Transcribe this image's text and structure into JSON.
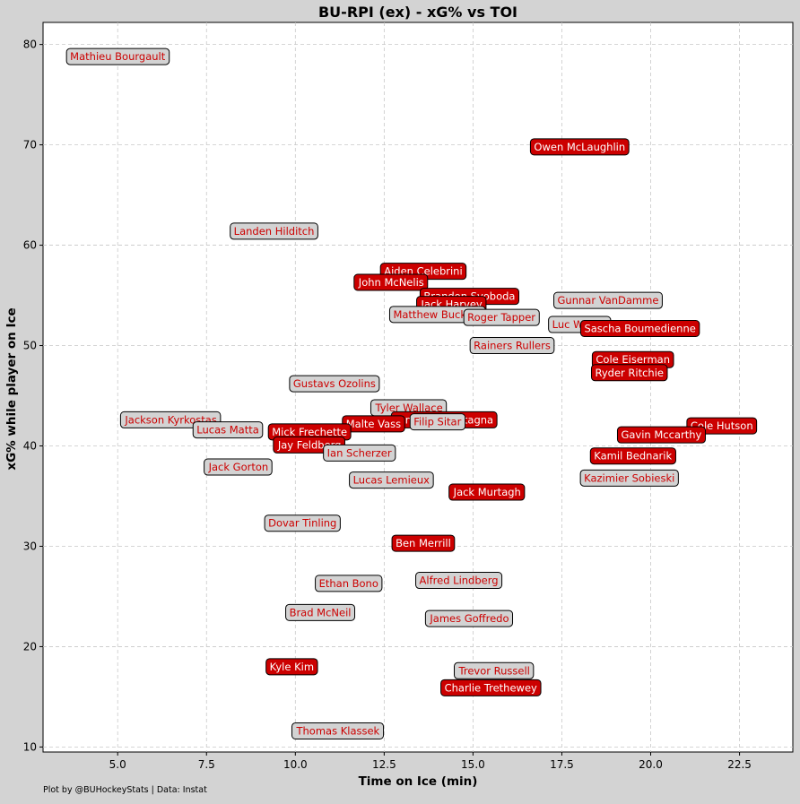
{
  "chart_data": {
    "type": "scatter",
    "title": "BU-RPI (ex) - xG% vs TOI",
    "xlabel": "Time on Ice (min)",
    "ylabel": "xG% while player on Ice",
    "xlim": [
      2.9,
      24.0
    ],
    "ylim": [
      9.5,
      82.2
    ],
    "xticks": [
      5.0,
      7.5,
      10.0,
      12.5,
      15.0,
      17.5,
      20.0,
      22.5
    ],
    "xtick_labels": [
      "5.0",
      "7.5",
      "10.0",
      "12.5",
      "15.0",
      "17.5",
      "20.0",
      "22.5"
    ],
    "yticks": [
      10,
      20,
      30,
      40,
      50,
      60,
      70,
      80
    ],
    "ytick_labels": [
      "10",
      "20",
      "30",
      "40",
      "50",
      "60",
      "70",
      "80"
    ],
    "grid": true,
    "colors": {
      "team_a": "#cc0000",
      "team_b": "#d3d3d3",
      "label_text_on_gray": "#cc0000",
      "label_text_on_red": "#ffffff"
    },
    "points": [
      {
        "name": "Mathieu Bourgault",
        "x": 5.0,
        "y": 78.8,
        "team": "b"
      },
      {
        "name": "Owen McLaughlin",
        "x": 18.0,
        "y": 69.8,
        "team": "a"
      },
      {
        "name": "Landen Hilditch",
        "x": 9.4,
        "y": 61.4,
        "team": "b"
      },
      {
        "name": "Aiden Celebrini",
        "x": 13.6,
        "y": 57.4,
        "team": "a"
      },
      {
        "name": "John McNelis",
        "x": 12.7,
        "y": 56.3,
        "team": "a"
      },
      {
        "name": "Brandon Svoboda",
        "x": 14.9,
        "y": 54.9,
        "team": "a"
      },
      {
        "name": "Gunnar VanDamme",
        "x": 18.8,
        "y": 54.5,
        "team": "b"
      },
      {
        "name": "Jack Harvey",
        "x": 14.4,
        "y": 54.1,
        "team": "a"
      },
      {
        "name": "Matthew Buckley",
        "x": 14.0,
        "y": 53.1,
        "team": "b"
      },
      {
        "name": "Roger Tapper",
        "x": 15.8,
        "y": 52.8,
        "team": "b"
      },
      {
        "name": "Luc Wilson",
        "x": 18.0,
        "y": 52.1,
        "team": "b"
      },
      {
        "name": "Sascha Boumedienne",
        "x": 19.7,
        "y": 51.7,
        "team": "a"
      },
      {
        "name": "Rainers Rullers",
        "x": 16.1,
        "y": 50.0,
        "team": "b"
      },
      {
        "name": "Cole Eiserman",
        "x": 19.5,
        "y": 48.6,
        "team": "a"
      },
      {
        "name": "Ryder Ritchie",
        "x": 19.4,
        "y": 47.3,
        "team": "a"
      },
      {
        "name": "Gustavs Ozolins",
        "x": 11.1,
        "y": 46.2,
        "team": "b"
      },
      {
        "name": "Tyler Wallace",
        "x": 13.2,
        "y": 43.8,
        "team": "b"
      },
      {
        "name": "Jonathan Castagna",
        "x": 14.2,
        "y": 42.6,
        "team": "a"
      },
      {
        "name": "Jackson Kyrkostas",
        "x": 6.5,
        "y": 42.6,
        "team": "b"
      },
      {
        "name": "Malte Vass",
        "x": 12.2,
        "y": 42.2,
        "team": "a"
      },
      {
        "name": "Filip Sitar",
        "x": 14.0,
        "y": 42.4,
        "team": "b"
      },
      {
        "name": "Cole Hutson",
        "x": 22.0,
        "y": 42.0,
        "team": "a"
      },
      {
        "name": "Lucas Matta",
        "x": 8.1,
        "y": 41.6,
        "team": "b"
      },
      {
        "name": "Mick Frechette",
        "x": 10.4,
        "y": 41.4,
        "team": "a"
      },
      {
        "name": "Gavin Mccarthy",
        "x": 20.3,
        "y": 41.1,
        "team": "a"
      },
      {
        "name": "Jay Feldberg",
        "x": 10.4,
        "y": 40.1,
        "team": "a"
      },
      {
        "name": "Ian Scherzer",
        "x": 11.8,
        "y": 39.3,
        "team": "b"
      },
      {
        "name": "Kamil Bednarik",
        "x": 19.5,
        "y": 39.0,
        "team": "a"
      },
      {
        "name": "Jack Gorton",
        "x": 8.4,
        "y": 37.9,
        "team": "b"
      },
      {
        "name": "Lucas Lemieux",
        "x": 12.7,
        "y": 36.6,
        "team": "b"
      },
      {
        "name": "Kazimier Sobieski",
        "x": 19.4,
        "y": 36.8,
        "team": "b"
      },
      {
        "name": "Jack Murtagh",
        "x": 15.4,
        "y": 35.4,
        "team": "a"
      },
      {
        "name": "Dovar Tinling",
        "x": 10.2,
        "y": 32.3,
        "team": "b"
      },
      {
        "name": "Ben Merrill",
        "x": 13.6,
        "y": 30.3,
        "team": "a"
      },
      {
        "name": "Alfred Lindberg",
        "x": 14.6,
        "y": 26.6,
        "team": "b"
      },
      {
        "name": "Ethan Bono",
        "x": 11.5,
        "y": 26.3,
        "team": "b"
      },
      {
        "name": "Brad McNeil",
        "x": 10.7,
        "y": 23.4,
        "team": "b"
      },
      {
        "name": "James Goffredo",
        "x": 14.9,
        "y": 22.8,
        "team": "b"
      },
      {
        "name": "Kyle Kim",
        "x": 9.9,
        "y": 18.0,
        "team": "a"
      },
      {
        "name": "Trevor Russell",
        "x": 15.6,
        "y": 17.6,
        "team": "b"
      },
      {
        "name": "Charlie Trethewey",
        "x": 15.5,
        "y": 15.9,
        "team": "a"
      },
      {
        "name": "Thomas Klassek",
        "x": 11.2,
        "y": 11.6,
        "team": "b"
      }
    ]
  },
  "footer": {
    "credit": "Plot by @BUHockeyStats | Data: Instat"
  }
}
